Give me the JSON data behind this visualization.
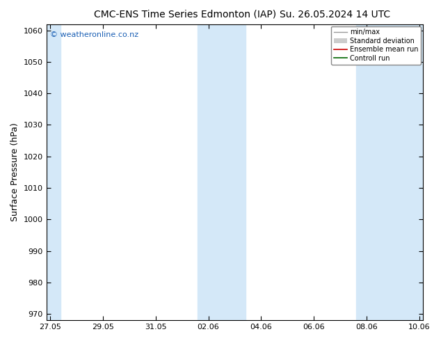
{
  "title_left": "CMC-ENS Time Series Edmonton (IAP)",
  "title_right": "Su. 26.05.2024 14 UTC",
  "ylabel": "Surface Pressure (hPa)",
  "ylim": [
    968,
    1062
  ],
  "yticks": [
    970,
    980,
    990,
    1000,
    1010,
    1020,
    1030,
    1040,
    1050,
    1060
  ],
  "xtick_labels": [
    "27.05",
    "29.05",
    "31.05",
    "02.06",
    "04.06",
    "06.06",
    "08.06",
    "10.06"
  ],
  "xtick_positions": [
    0,
    2,
    4,
    6,
    8,
    10,
    12,
    14
  ],
  "x_total_days": 14,
  "shaded_bands": [
    {
      "x_start": -0.15,
      "x_end": 0.4
    },
    {
      "x_start": 5.6,
      "x_end": 7.4
    },
    {
      "x_start": 11.6,
      "x_end": 14.15
    }
  ],
  "shade_color": "#d4e8f8",
  "bg_color": "#ffffff",
  "watermark": "© weatheronline.co.nz",
  "watermark_color": "#1a5fb4",
  "legend_entries": [
    {
      "label": "min/max",
      "color": "#999999",
      "lw": 1.0,
      "style": "-"
    },
    {
      "label": "Standard deviation",
      "color": "#cccccc",
      "lw": 5,
      "style": "-"
    },
    {
      "label": "Ensemble mean run",
      "color": "#cc0000",
      "lw": 1.2,
      "style": "-"
    },
    {
      "label": "Controll run",
      "color": "#006600",
      "lw": 1.2,
      "style": "-"
    }
  ],
  "title_fontsize": 10,
  "tick_fontsize": 8,
  "ylabel_fontsize": 9,
  "watermark_fontsize": 8
}
